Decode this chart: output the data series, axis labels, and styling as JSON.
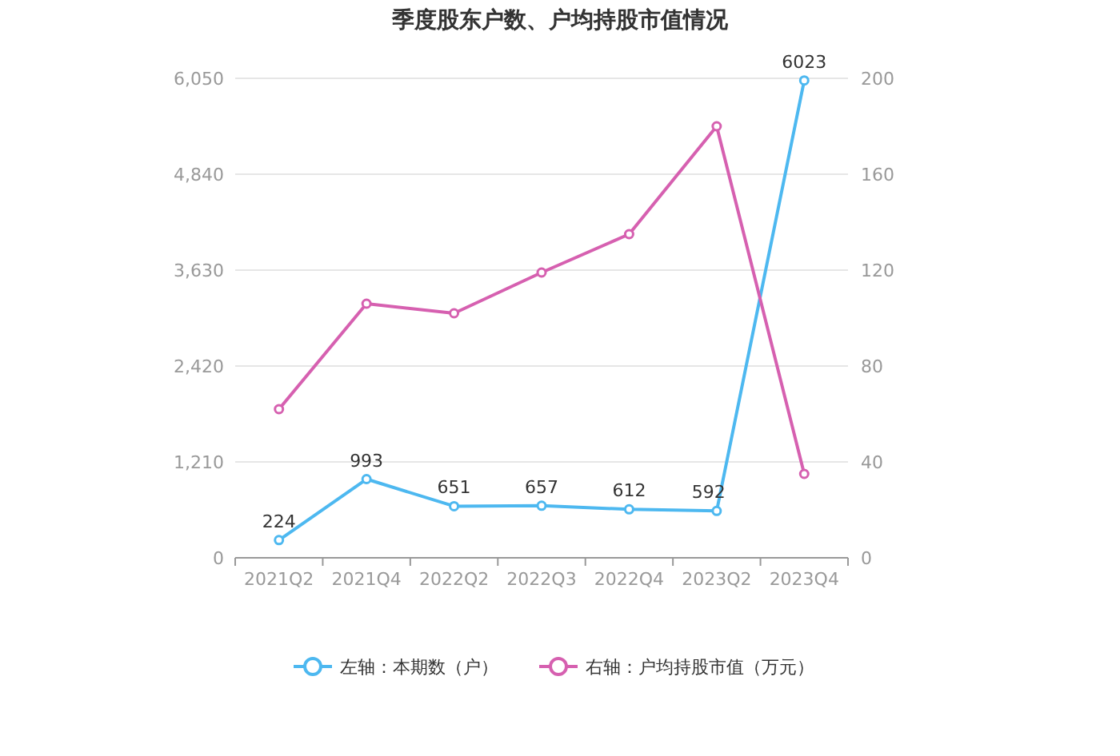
{
  "chart_data": {
    "type": "line",
    "title": "季度股东户数、户均持股市值情况",
    "categories": [
      "2021Q2",
      "2021Q4",
      "2022Q2",
      "2022Q3",
      "2022Q4",
      "2023Q2",
      "2023Q4"
    ],
    "series": [
      {
        "name": "左轴：本期数（户）",
        "color": "#4db8f0",
        "values": [
          224,
          993,
          651,
          657,
          612,
          592,
          6023
        ],
        "value_labels": [
          "224",
          "993",
          "651",
          "657",
          "612",
          "592",
          "6023"
        ]
      },
      {
        "name": "右轴：户均持股市值（万元）",
        "color": "#d660b0",
        "axis": "y2",
        "values": [
          62,
          106,
          102,
          119,
          135,
          180,
          35
        ]
      }
    ],
    "ylim": [
      0,
      6050
    ],
    "yticks": [
      0,
      {
        "value": 1210,
        "label": "1,210"
      },
      {
        "value": 2420,
        "label": "2,420"
      },
      {
        "value": 3630,
        "label": "3,630"
      },
      {
        "value": 4840,
        "label": "4,840"
      },
      {
        "value": 6050,
        "label": "6,050"
      }
    ],
    "y2lim": [
      0,
      200
    ],
    "y2ticks": [
      0,
      40,
      80,
      120,
      160,
      200
    ],
    "grid": "y",
    "legend": "bottom",
    "marker": "circle",
    "line_style": "solid"
  }
}
